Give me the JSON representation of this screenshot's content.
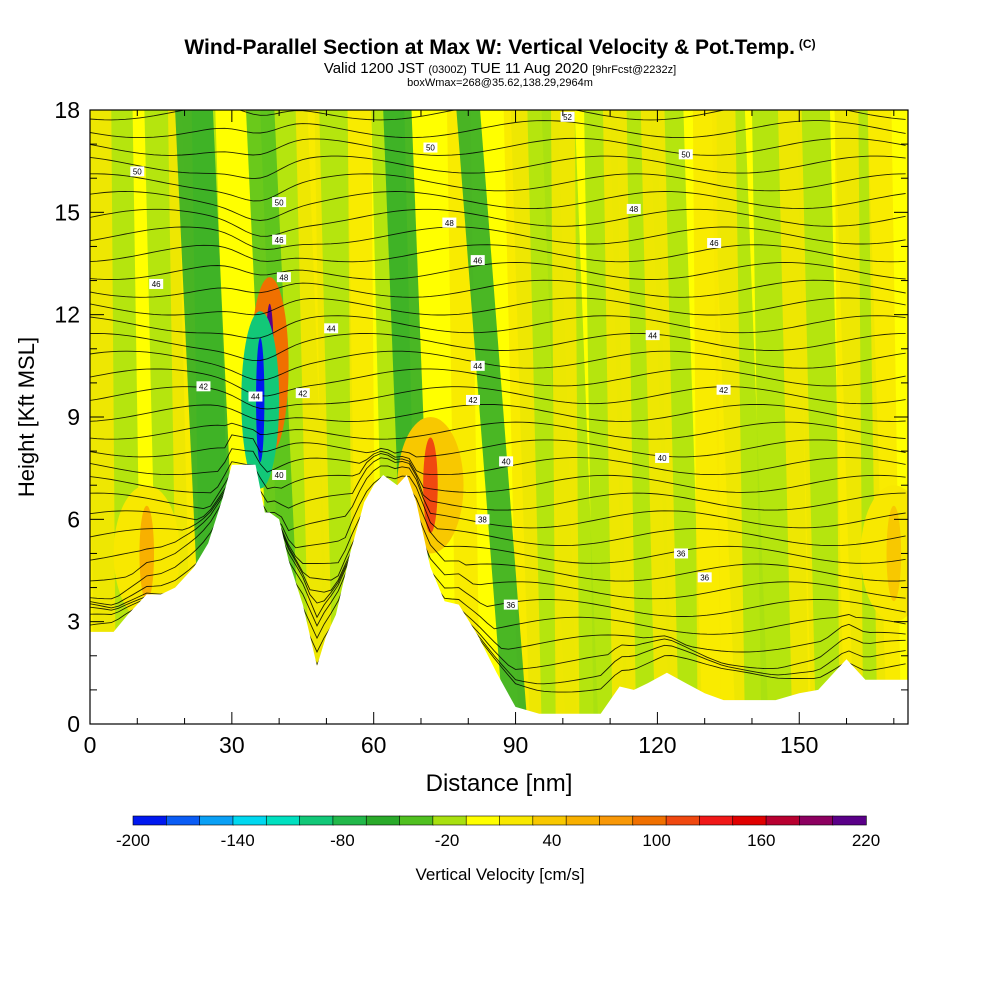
{
  "header": {
    "title": "Wind-Parallel Section at Max W: Vertical Velocity & Pot.Temp.",
    "title_mark": "(C)",
    "valid_a": "Valid 1200 JST",
    "valid_b": "(0300Z)",
    "valid_c": "TUE 11 Aug 2020",
    "valid_d": "[9hrFcst@2232z]",
    "box": "boxWmax=268@35.62,138.29,2964m"
  },
  "chart_data": {
    "type": "heatmap",
    "xlabel": "Distance [nm]",
    "ylabel": "Height [Kft MSL]",
    "xlim": [
      0,
      173
    ],
    "ylim": [
      0,
      18
    ],
    "x_ticks": [
      "0",
      "30",
      "60",
      "90",
      "120",
      "150"
    ],
    "y_ticks": [
      "0",
      "3",
      "6",
      "9",
      "12",
      "15",
      "18"
    ],
    "colorbar": {
      "label": "Vertical Velocity [cm/s]",
      "tick_labels": [
        "-200",
        "-140",
        "-80",
        "-20",
        "40",
        "100",
        "160",
        "220"
      ],
      "bin_edges": [
        -200,
        -180,
        -160,
        -140,
        -120,
        -100,
        -80,
        -60,
        -40,
        -20,
        0,
        20,
        40,
        60,
        80,
        100,
        120,
        140,
        160,
        180,
        200,
        220
      ],
      "colors": [
        "#0018f0",
        "#0a5cf5",
        "#0aa0f5",
        "#00d8f0",
        "#00e0c0",
        "#12c878",
        "#22b84a",
        "#2aaa2a",
        "#50c020",
        "#a8e010",
        "#ffff00",
        "#f8e800",
        "#f8c800",
        "#f8b000",
        "#f89808",
        "#f07000",
        "#f04810",
        "#f01818",
        "#e00000",
        "#b80030",
        "#8c0060",
        "#5a0088"
      ]
    },
    "terrain_kft": [
      [
        0,
        2.7
      ],
      [
        5,
        2.7
      ],
      [
        8,
        3.2
      ],
      [
        12,
        3.8
      ],
      [
        15,
        3.8
      ],
      [
        18,
        4.0
      ],
      [
        22,
        4.6
      ],
      [
        25,
        5.3
      ],
      [
        28,
        6.6
      ],
      [
        30,
        7.6
      ],
      [
        35,
        7.6
      ],
      [
        37,
        6.2
      ],
      [
        38,
        6.2
      ],
      [
        40,
        6.0
      ],
      [
        42,
        4.8
      ],
      [
        45,
        3.5
      ],
      [
        48,
        1.7
      ],
      [
        50,
        2.6
      ],
      [
        52,
        3.2
      ],
      [
        55,
        5.0
      ],
      [
        58,
        6.5
      ],
      [
        60,
        7.0
      ],
      [
        62,
        7.3
      ],
      [
        65,
        7.0
      ],
      [
        67,
        7.3
      ],
      [
        69,
        6.5
      ],
      [
        72,
        4.6
      ],
      [
        75,
        3.6
      ],
      [
        78,
        3.5
      ],
      [
        82,
        2.6
      ],
      [
        86,
        1.5
      ],
      [
        90,
        0.5
      ],
      [
        95,
        0.3
      ],
      [
        100,
        0.3
      ],
      [
        108,
        0.3
      ],
      [
        112,
        1.1
      ],
      [
        115,
        1.0
      ],
      [
        118,
        1.2
      ],
      [
        122,
        1.5
      ],
      [
        126,
        1.2
      ],
      [
        130,
        0.9
      ],
      [
        134,
        0.7
      ],
      [
        140,
        0.7
      ],
      [
        145,
        0.7
      ],
      [
        150,
        0.9
      ],
      [
        154,
        1.0
      ],
      [
        158,
        1.6
      ],
      [
        160,
        1.9
      ],
      [
        164,
        1.3
      ],
      [
        168,
        1.3
      ],
      [
        173,
        1.3
      ]
    ],
    "updraft_cells": [
      {
        "x": 38,
        "y": 10.5,
        "w": 240
      },
      {
        "x": 36,
        "y": 9.5,
        "w": -190
      },
      {
        "x": 72,
        "y": 7.0,
        "w": 130
      },
      {
        "x": 12,
        "y": 5.0,
        "w": 60
      },
      {
        "x": 170,
        "y": 5.0,
        "w": 50
      }
    ],
    "isentropes_C": [
      {
        "label": "36",
        "at": [
          [
            89,
            3.5
          ],
          [
            125,
            5.0
          ],
          [
            130,
            4.3
          ]
        ]
      },
      {
        "label": "38",
        "at": [
          [
            83,
            6.0
          ]
        ]
      },
      {
        "label": "40",
        "at": [
          [
            40,
            7.3
          ],
          [
            88,
            7.7
          ],
          [
            121,
            7.8
          ]
        ]
      },
      {
        "label": "42",
        "at": [
          [
            24,
            9.9
          ],
          [
            45,
            9.7
          ],
          [
            81,
            9.5
          ],
          [
            134,
            9.8
          ]
        ]
      },
      {
        "label": "44",
        "at": [
          [
            35,
            9.6
          ],
          [
            51,
            11.6
          ],
          [
            82,
            10.5
          ],
          [
            119,
            11.4
          ]
        ]
      },
      {
        "label": "46",
        "at": [
          [
            14,
            12.9
          ],
          [
            40,
            14.2
          ],
          [
            82,
            13.6
          ],
          [
            132,
            14.1
          ]
        ]
      },
      {
        "label": "48",
        "at": [
          [
            41,
            13.1
          ],
          [
            76,
            14.7
          ],
          [
            115,
            15.1
          ]
        ]
      },
      {
        "label": "50",
        "at": [
          [
            10,
            16.2
          ],
          [
            40,
            15.3
          ],
          [
            72,
            16.9
          ],
          [
            126,
            16.7
          ]
        ]
      },
      {
        "label": "52",
        "at": [
          [
            101,
            17.8
          ]
        ]
      }
    ]
  }
}
